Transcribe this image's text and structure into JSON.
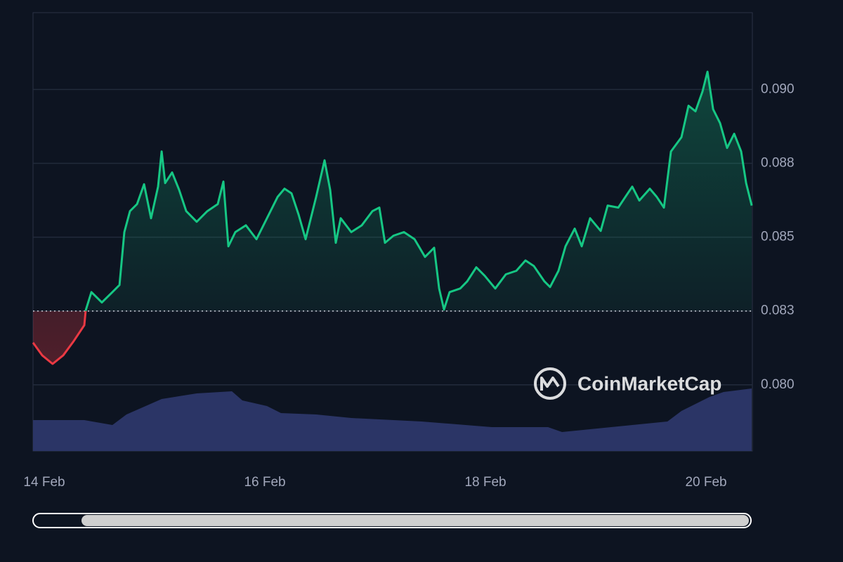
{
  "chart_data": {
    "type": "line",
    "x": [
      13.898,
      13.981,
      14.076,
      14.172,
      14.267,
      14.363,
      14.376,
      14.427,
      14.522,
      14.618,
      14.682,
      14.726,
      14.777,
      14.841,
      14.905,
      14.968,
      15.032,
      15.064,
      15.096,
      15.159,
      15.223,
      15.287,
      15.382,
      15.478,
      15.573,
      15.624,
      15.669,
      15.732,
      15.828,
      15.924,
      16.019,
      16.115,
      16.178,
      16.242,
      16.306,
      16.369,
      16.465,
      16.541,
      16.592,
      16.643,
      16.688,
      16.783,
      16.879,
      16.975,
      17.038,
      17.089,
      17.166,
      17.261,
      17.357,
      17.452,
      17.535,
      17.58,
      17.624,
      17.675,
      17.771,
      17.834,
      17.917,
      17.994,
      18.089,
      18.185,
      18.28,
      18.363,
      18.439,
      18.535,
      18.586,
      18.662,
      18.726,
      18.809,
      18.873,
      18.949,
      19.045,
      19.108,
      19.204,
      19.268,
      19.331,
      19.395,
      19.49,
      19.554,
      19.618,
      19.682,
      19.777,
      19.841,
      19.904,
      19.968,
      20.013,
      20.064,
      20.127,
      20.191,
      20.255,
      20.318,
      20.363,
      20.414
    ],
    "series": [
      {
        "color": "#16c784",
        "values": [
          0.08143,
          0.081,
          0.08071,
          0.081,
          0.08148,
          0.08202,
          0.08252,
          0.08314,
          0.08279,
          0.08314,
          0.08338,
          0.08517,
          0.08588,
          0.08612,
          0.08679,
          0.08564,
          0.08671,
          0.0879,
          0.08683,
          0.08719,
          0.0866,
          0.08588,
          0.08552,
          0.08588,
          0.08612,
          0.08688,
          0.08469,
          0.08517,
          0.0854,
          0.08493,
          0.08564,
          0.08636,
          0.08664,
          0.08648,
          0.08576,
          0.08493,
          0.08636,
          0.0876,
          0.0866,
          0.08481,
          0.08564,
          0.08517,
          0.0854,
          0.08588,
          0.086,
          0.08481,
          0.08505,
          0.08517,
          0.08493,
          0.08433,
          0.08464,
          0.08326,
          0.08255,
          0.08314,
          0.08326,
          0.0835,
          0.08398,
          0.08369,
          0.08326,
          0.08374,
          0.08386,
          0.08421,
          0.08402,
          0.0835,
          0.08331,
          0.08386,
          0.08469,
          0.08529,
          0.08469,
          0.08564,
          0.08521,
          0.08607,
          0.086,
          0.08636,
          0.08671,
          0.08624,
          0.08664,
          0.08636,
          0.086,
          0.0879,
          0.08838,
          0.08945,
          0.08926,
          0.08993,
          0.0906,
          0.08933,
          0.08886,
          0.08802,
          0.0885,
          0.0879,
          0.08683,
          0.08607
        ]
      }
    ],
    "down_color": "#ea3943",
    "baseline": 0.0825,
    "volume": {
      "color": "#2b3566",
      "x": [
        13.898,
        14.363,
        14.618,
        14.745,
        15.064,
        15.382,
        15.701,
        15.796,
        16.019,
        16.146,
        16.465,
        16.783,
        17.42,
        18.057,
        18.567,
        18.694,
        19.331,
        19.65,
        19.777,
        20.032,
        20.159,
        20.414
      ],
      "values": [
        44,
        44,
        37,
        52,
        74,
        82,
        85,
        72,
        64,
        54,
        52,
        47,
        42,
        34,
        34,
        27,
        37,
        42,
        57,
        77,
        84,
        89
      ]
    },
    "xlim": [
      13.898,
      20.42
    ],
    "xticks": [
      {
        "value": 14,
        "label": "14 Feb"
      },
      {
        "value": 16,
        "label": "16 Feb"
      },
      {
        "value": 18,
        "label": "18 Feb"
      },
      {
        "value": 20,
        "label": "20 Feb"
      }
    ],
    "ylim": [
      0.07776,
      0.0926
    ],
    "yticks": [
      {
        "value": 0.08,
        "label": "0.080"
      },
      {
        "value": 0.0825,
        "label": "0.083"
      },
      {
        "value": 0.085,
        "label": "0.085"
      },
      {
        "value": 0.0875,
        "label": "0.088"
      },
      {
        "value": 0.09,
        "label": "0.090"
      }
    ],
    "grid": true,
    "watermark": "CoinMarketCap"
  }
}
